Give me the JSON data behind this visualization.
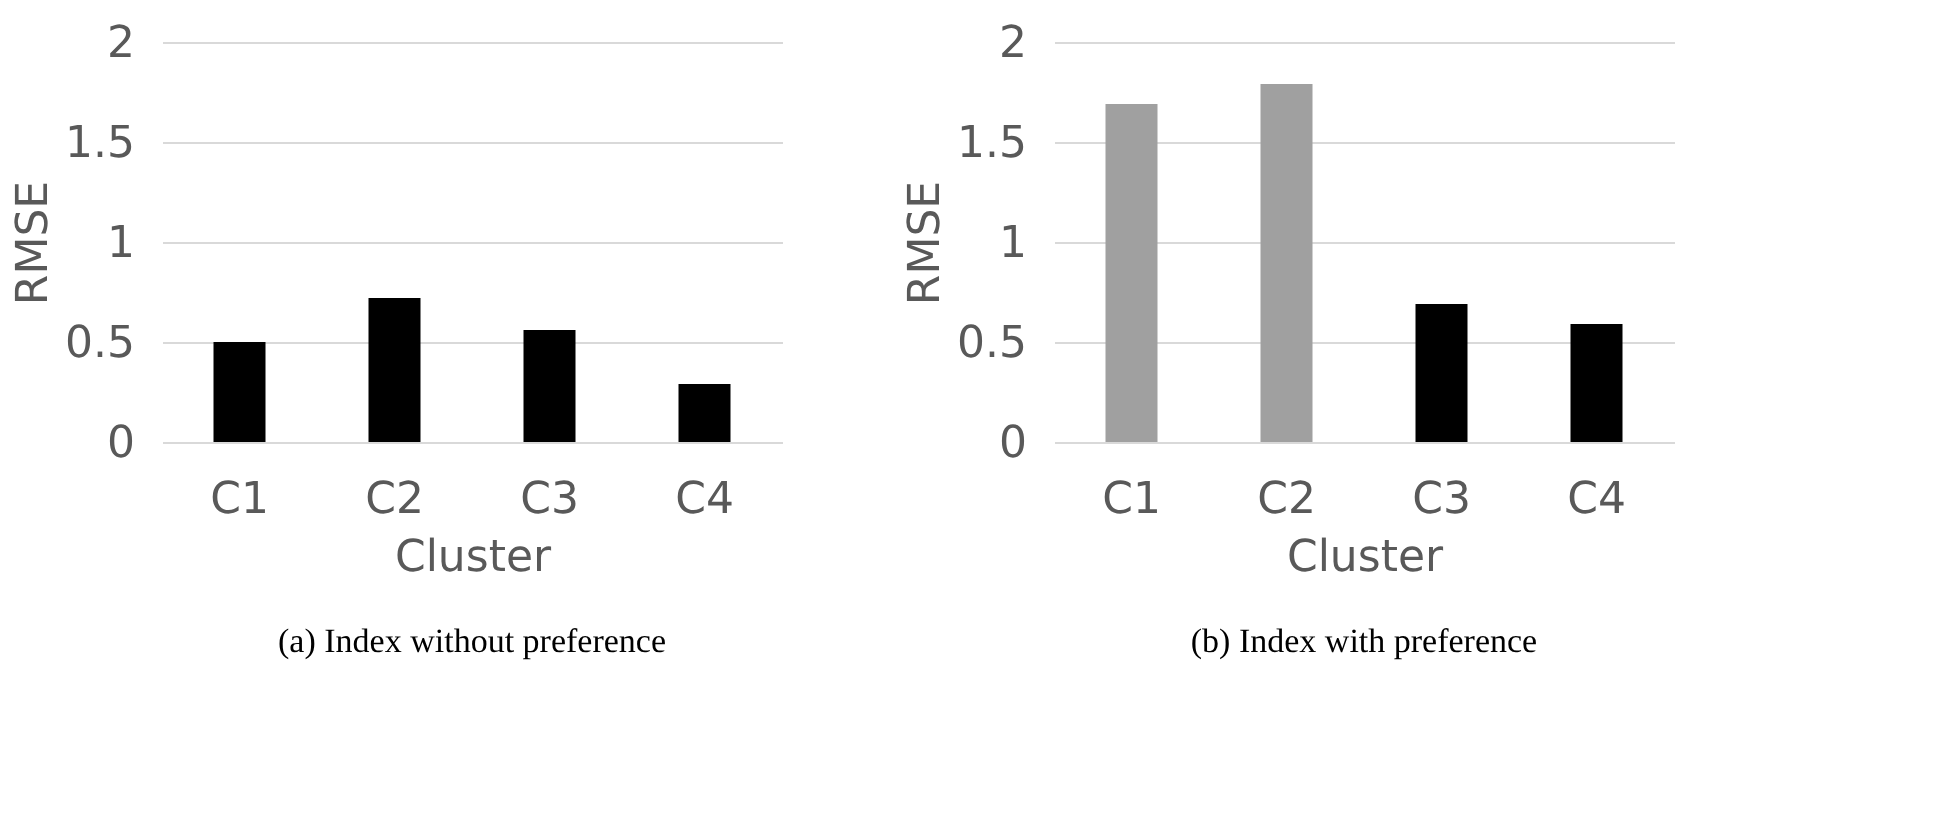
{
  "chart_data": [
    {
      "type": "bar",
      "categories": [
        "C1",
        "C2",
        "C3",
        "C4"
      ],
      "values": [
        0.5,
        0.72,
        0.56,
        0.29
      ],
      "colors": [
        "#000000",
        "#000000",
        "#000000",
        "#000000"
      ],
      "xlabel": "Cluster",
      "ylabel": "RMSE",
      "ylim": [
        0,
        2
      ],
      "yticks": [
        0,
        0.5,
        1,
        1.5,
        2
      ],
      "grid": "y",
      "annotations": [
        "(a) Index without preference"
      ]
    },
    {
      "type": "bar",
      "categories": [
        "C1",
        "C2",
        "C3",
        "C4"
      ],
      "values": [
        1.69,
        1.79,
        0.69,
        0.59
      ],
      "colors": [
        "#a0a0a0",
        "#a0a0a0",
        "#000000",
        "#000000"
      ],
      "xlabel": "Cluster",
      "ylabel": "RMSE",
      "ylim": [
        0,
        2
      ],
      "yticks": [
        0,
        0.5,
        1,
        1.5,
        2
      ],
      "grid": "y",
      "annotations": [
        "(b) Index with preference"
      ]
    }
  ]
}
